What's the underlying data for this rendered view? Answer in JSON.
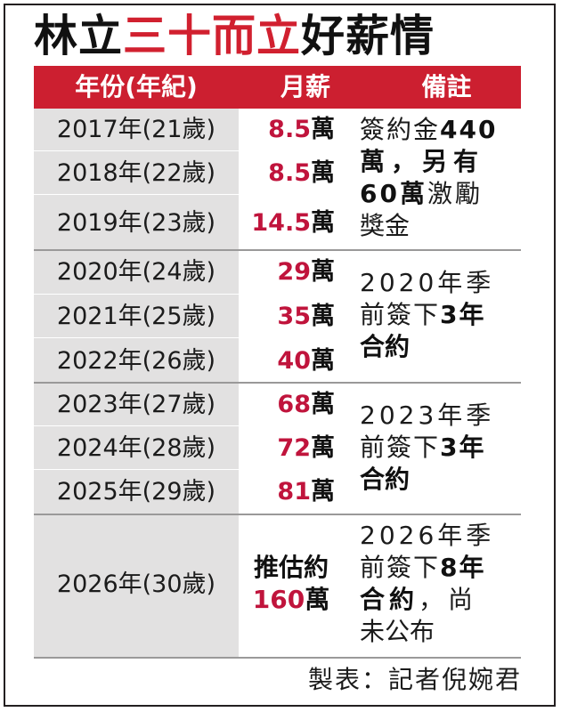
{
  "title": {
    "part1": "林立",
    "highlight": "三十而立",
    "part2": "好薪情"
  },
  "header": {
    "year": "年份(年紀)",
    "salary": "月薪",
    "note": "備註"
  },
  "rows": [
    {
      "year": "2017年(21歲)",
      "amount": "8.5",
      "unit": "萬"
    },
    {
      "year": "2018年(22歲)",
      "amount": "8.5",
      "unit": "萬"
    },
    {
      "year": "2019年(23歲)",
      "amount": "14.5",
      "unit": "萬"
    },
    {
      "year": "2020年(24歲)",
      "amount": "29",
      "unit": "萬"
    },
    {
      "year": "2021年(25歲)",
      "amount": "35",
      "unit": "萬"
    },
    {
      "year": "2022年(26歲)",
      "amount": "40",
      "unit": "萬"
    },
    {
      "year": "2023年(27歲)",
      "amount": "68",
      "unit": "萬"
    },
    {
      "year": "2024年(28歲)",
      "amount": "72",
      "unit": "萬"
    },
    {
      "year": "2025年(29歲)",
      "amount": "81",
      "unit": "萬"
    },
    {
      "year": "2026年(30歲)",
      "estimate": "推估約",
      "amount": "160",
      "unit": "萬"
    }
  ],
  "notes": [
    {
      "lines": [
        [
          "簽約金",
          "440"
        ],
        [
          "萬，另有"
        ],
        [
          "",
          "60萬",
          "激勵"
        ],
        [
          "獎金"
        ]
      ]
    },
    {
      "lines": [
        [
          "2020年季"
        ],
        [
          "前簽下",
          "3年"
        ],
        [
          "",
          "合約"
        ]
      ]
    },
    {
      "lines": [
        [
          "2023年季"
        ],
        [
          "前簽下",
          "3年"
        ],
        [
          "",
          "合約"
        ]
      ]
    },
    {
      "lines": [
        [
          "2026年季"
        ],
        [
          "前簽下",
          "8年"
        ],
        [
          "",
          "合約",
          "，尚"
        ],
        [
          "未公布"
        ]
      ]
    }
  ],
  "footer": "製表：記者倪婉君",
  "colors": {
    "accent": "#cc1f30",
    "value": "#c0143c",
    "year_column_bg": "#e2e1e1"
  }
}
